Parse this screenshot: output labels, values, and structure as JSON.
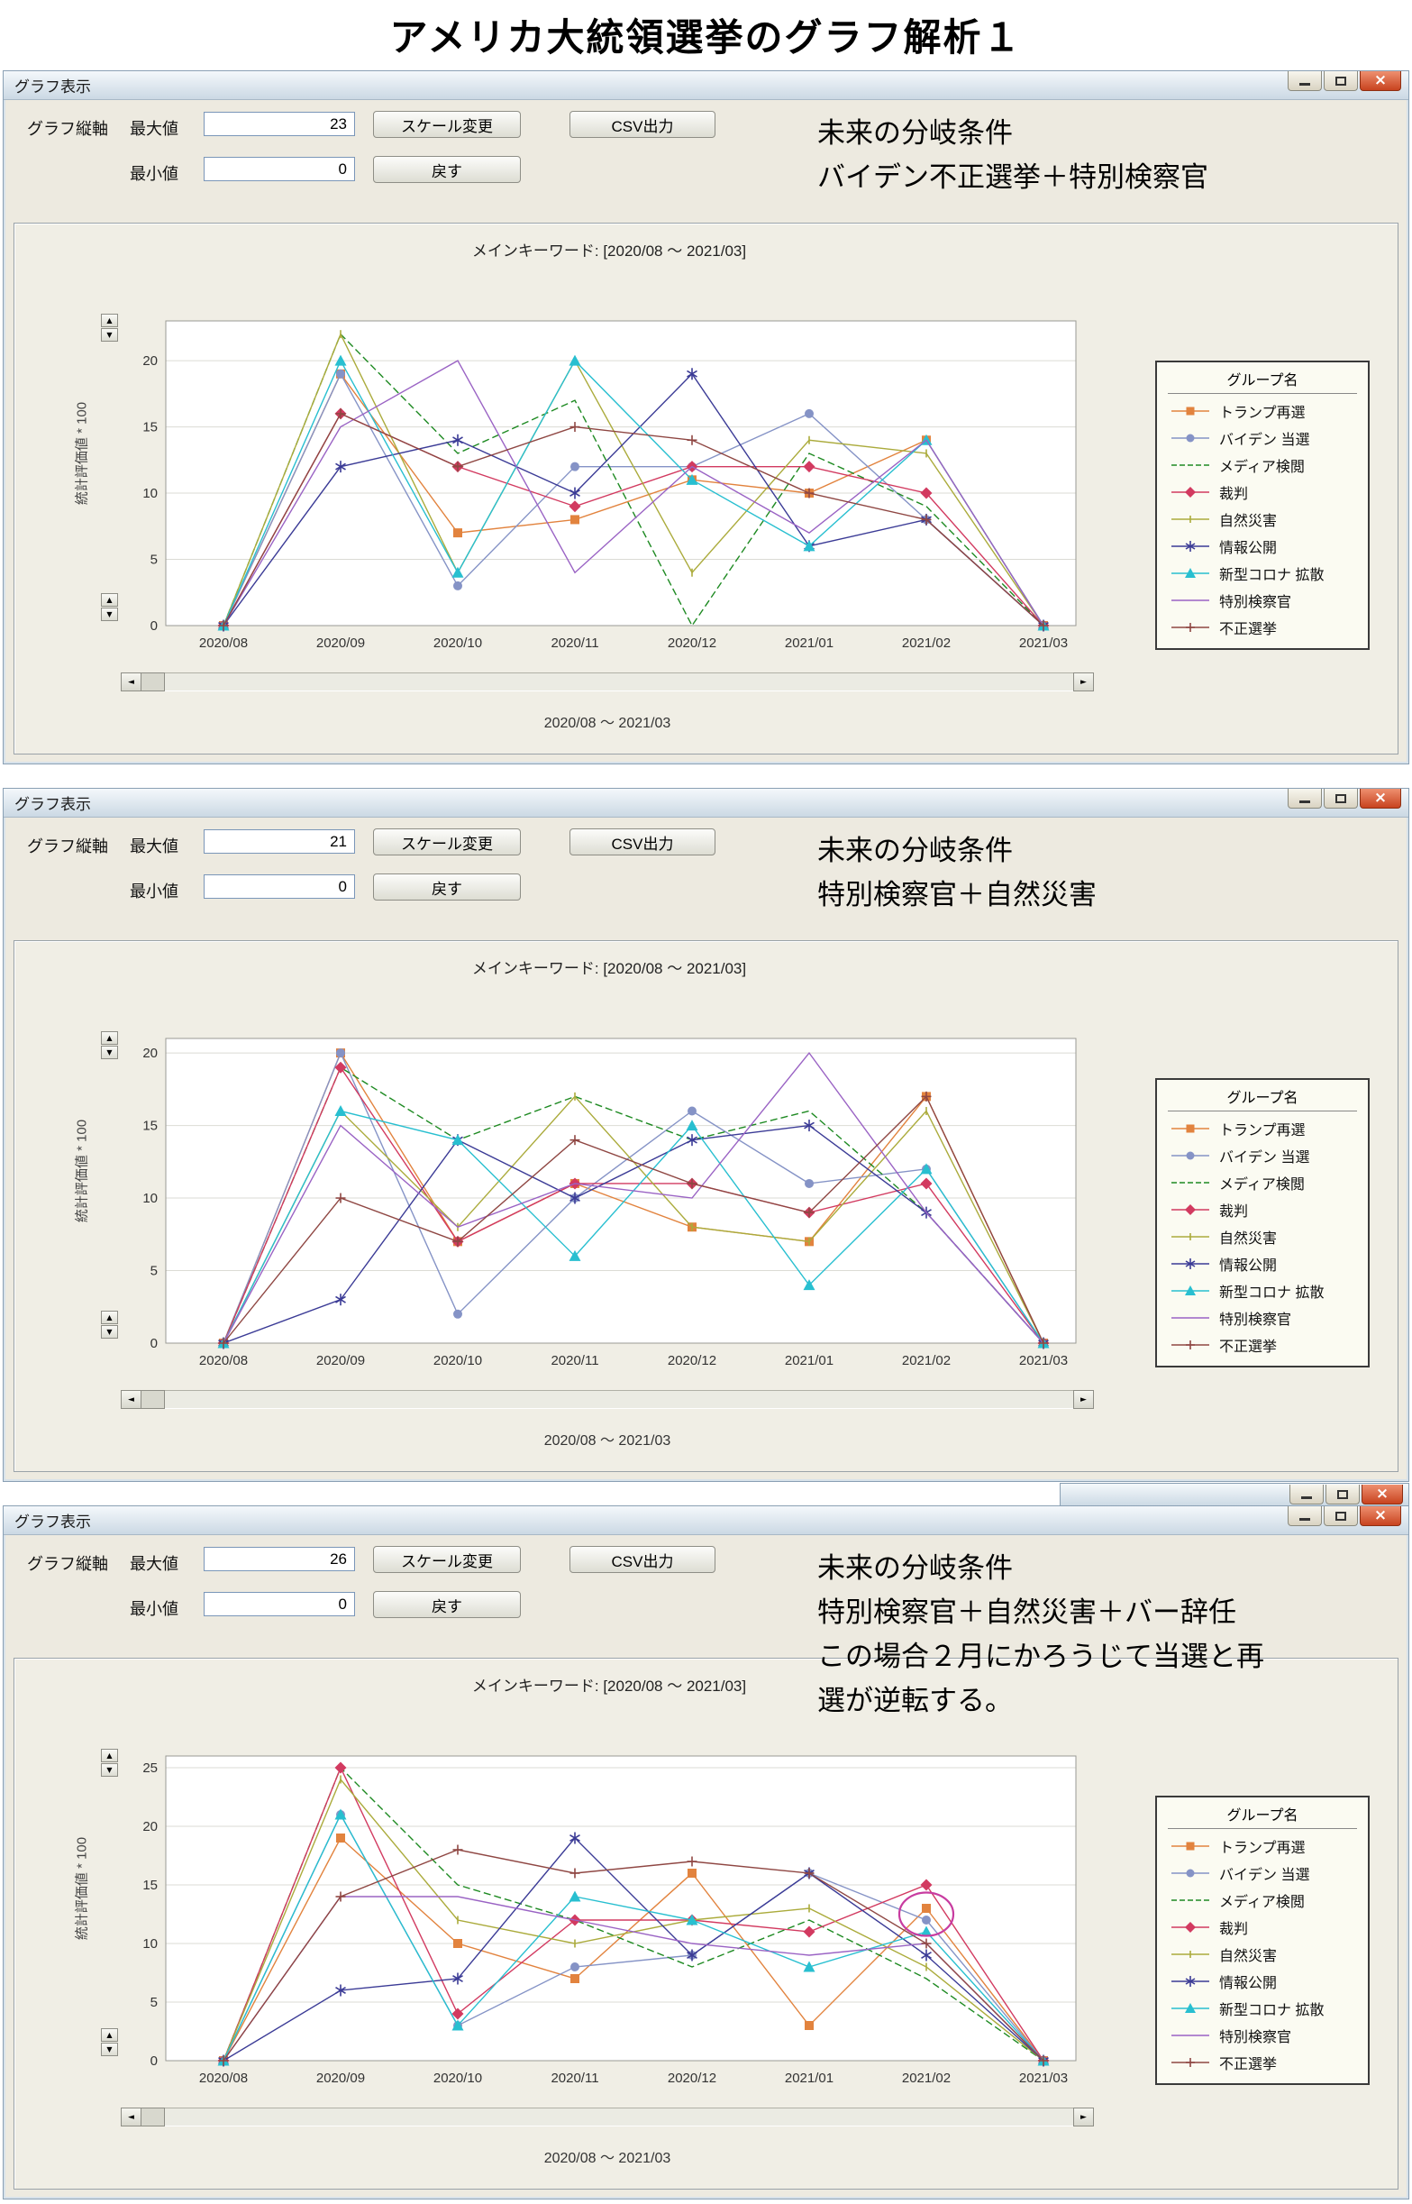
{
  "page": {
    "title": "アメリカ大統領選挙のグラフ解析１"
  },
  "window_chrome": {
    "title": "グラフ表示"
  },
  "controls": {
    "axis_group_label": "グラフ縦軸",
    "max_label": "最大値",
    "min_label": "最小値",
    "scale_button": "スケール変更",
    "reset_button": "戻す",
    "csv_button": "CSV出力"
  },
  "chart_common": {
    "title": "メインキーワード: [2020/08 ～ 2021/03]",
    "y_axis_label": "統計評価値 * 100",
    "x_axis_label": "2020/08 ～ 2021/03",
    "legend_title": "グループ名",
    "scroll_left": "◄",
    "scroll_right": "►",
    "spin_up": "▲",
    "spin_down": "▼",
    "categories": [
      "2020/08",
      "2020/09",
      "2020/10",
      "2020/11",
      "2020/12",
      "2021/01",
      "2021/02",
      "2021/03"
    ],
    "series_meta": [
      {
        "name": "トランプ再選",
        "color": "#E2833E",
        "marker": "square",
        "dash": "solid"
      },
      {
        "name": "バイデン 当選",
        "color": "#8593C6",
        "marker": "circle",
        "dash": "solid"
      },
      {
        "name": "メディア検閲",
        "color": "#1E8A22",
        "marker": "none",
        "dash": "dashed"
      },
      {
        "name": "裁判",
        "color": "#D23A60",
        "marker": "diamond",
        "dash": "solid"
      },
      {
        "name": "自然災害",
        "color": "#ABAB3C",
        "marker": "tick",
        "dash": "solid"
      },
      {
        "name": "情報公開",
        "color": "#3B3B96",
        "marker": "asterisk",
        "dash": "solid"
      },
      {
        "name": "新型コロナ 拡散",
        "color": "#28BFD0",
        "marker": "triangle",
        "dash": "solid"
      },
      {
        "name": "特別検察官",
        "color": "#9A63C4",
        "marker": "none",
        "dash": "solid"
      },
      {
        "name": "不正選挙",
        "color": "#8F4743",
        "marker": "plus",
        "dash": "solid"
      }
    ]
  },
  "windows": [
    {
      "max_value": "23",
      "min_value": "0",
      "note_lines": [
        "未来の分岐条件",
        "バイデン不正選挙＋特別検察官"
      ]
    },
    {
      "max_value": "21",
      "min_value": "0",
      "note_lines": [
        "未来の分岐条件",
        "特別検察官＋自然災害"
      ]
    },
    {
      "max_value": "26",
      "min_value": "0",
      "note_lines": [
        "未来の分岐条件",
        "特別検察官＋自然災害＋バー辞任",
        "この場合２月にかろうじて当選と再",
        "選が逆転する。"
      ]
    }
  ],
  "chart_data": [
    {
      "type": "line",
      "title": "メインキーワード: [2020/08 ～ 2021/03]",
      "xlabel": "2020/08 ～ 2021/03",
      "ylabel": "統計評価値 * 100",
      "ylim": [
        0,
        23
      ],
      "grid": "horizontal",
      "legend_position": "right",
      "categories": [
        "2020/08",
        "2020/09",
        "2020/10",
        "2020/11",
        "2020/12",
        "2021/01",
        "2021/02",
        "2021/03"
      ],
      "series": [
        {
          "name": "トランプ再選",
          "values": [
            0,
            19,
            7,
            8,
            11,
            10,
            14,
            0
          ]
        },
        {
          "name": "バイデン 当選",
          "values": [
            0,
            19,
            3,
            12,
            12,
            16,
            8,
            0
          ]
        },
        {
          "name": "メディア検閲",
          "values": [
            0,
            22,
            13,
            17,
            0,
            13,
            9,
            0
          ]
        },
        {
          "name": "裁判",
          "values": [
            0,
            16,
            12,
            9,
            12,
            12,
            10,
            0
          ]
        },
        {
          "name": "自然災害",
          "values": [
            0,
            22,
            4,
            20,
            4,
            14,
            13,
            0
          ]
        },
        {
          "name": "情報公開",
          "values": [
            0,
            12,
            14,
            10,
            19,
            6,
            8,
            0
          ]
        },
        {
          "name": "新型コロナ 拡散",
          "values": [
            0,
            20,
            4,
            20,
            11,
            6,
            14,
            0
          ]
        },
        {
          "name": "特別検察官",
          "values": [
            0,
            15,
            20,
            4,
            12,
            7,
            14,
            0
          ]
        },
        {
          "name": "不正選挙",
          "values": [
            0,
            16,
            12,
            15,
            14,
            10,
            8,
            0
          ]
        }
      ]
    },
    {
      "type": "line",
      "title": "メインキーワード: [2020/08 ～ 2021/03]",
      "xlabel": "2020/08 ～ 2021/03",
      "ylabel": "統計評価値 * 100",
      "ylim": [
        0,
        21
      ],
      "grid": "horizontal",
      "legend_position": "right",
      "categories": [
        "2020/08",
        "2020/09",
        "2020/10",
        "2020/11",
        "2020/12",
        "2021/01",
        "2021/02",
        "2021/03"
      ],
      "series": [
        {
          "name": "トランプ再選",
          "values": [
            0,
            20,
            7,
            11,
            8,
            7,
            17,
            0
          ]
        },
        {
          "name": "バイデン 当選",
          "values": [
            0,
            20,
            2,
            10,
            16,
            11,
            12,
            0
          ]
        },
        {
          "name": "メディア検閲",
          "values": [
            0,
            19,
            14,
            17,
            14,
            16,
            9,
            0
          ]
        },
        {
          "name": "裁判",
          "values": [
            0,
            19,
            7,
            11,
            11,
            9,
            11,
            0
          ]
        },
        {
          "name": "自然災害",
          "values": [
            0,
            16,
            8,
            17,
            8,
            7,
            16,
            0
          ]
        },
        {
          "name": "情報公開",
          "values": [
            0,
            3,
            14,
            10,
            14,
            15,
            9,
            0
          ]
        },
        {
          "name": "新型コロナ 拡散",
          "values": [
            0,
            16,
            14,
            6,
            15,
            4,
            12,
            0
          ]
        },
        {
          "name": "特別検察官",
          "values": [
            0,
            15,
            8,
            11,
            10,
            20,
            9,
            0
          ]
        },
        {
          "name": "不正選挙",
          "values": [
            0,
            10,
            7,
            14,
            11,
            9,
            17,
            0
          ]
        }
      ]
    },
    {
      "type": "line",
      "title": "メインキーワード: [2020/08 ～ 2021/03]",
      "xlabel": "2020/08 ～ 2021/03",
      "ylabel": "統計評価値 * 100",
      "ylim": [
        0,
        26
      ],
      "grid": "horizontal",
      "legend_position": "right",
      "categories": [
        "2020/08",
        "2020/09",
        "2020/10",
        "2020/11",
        "2020/12",
        "2021/01",
        "2021/02",
        "2021/03"
      ],
      "series": [
        {
          "name": "トランプ再選",
          "values": [
            0,
            19,
            10,
            7,
            16,
            3,
            13,
            0
          ]
        },
        {
          "name": "バイデン 当選",
          "values": [
            0,
            21,
            3,
            8,
            9,
            16,
            12,
            0
          ]
        },
        {
          "name": "メディア検閲",
          "values": [
            0,
            25,
            15,
            12,
            8,
            12,
            7,
            0
          ]
        },
        {
          "name": "裁判",
          "values": [
            0,
            25,
            4,
            12,
            12,
            11,
            15,
            0
          ]
        },
        {
          "name": "自然災害",
          "values": [
            0,
            24,
            12,
            10,
            12,
            13,
            8,
            0
          ]
        },
        {
          "name": "情報公開",
          "values": [
            0,
            6,
            7,
            19,
            9,
            16,
            9,
            0
          ]
        },
        {
          "name": "新型コロナ 拡散",
          "values": [
            0,
            21,
            3,
            14,
            12,
            8,
            11,
            0
          ]
        },
        {
          "name": "特別検察官",
          "values": [
            0,
            14,
            14,
            12,
            10,
            9,
            10,
            0
          ]
        },
        {
          "name": "不正選挙",
          "values": [
            0,
            14,
            18,
            16,
            17,
            16,
            10,
            0
          ]
        }
      ],
      "annotations": [
        {
          "type": "ellipse",
          "category": "2021/02",
          "y": 12.5,
          "color": "#C83CA0"
        }
      ]
    }
  ]
}
